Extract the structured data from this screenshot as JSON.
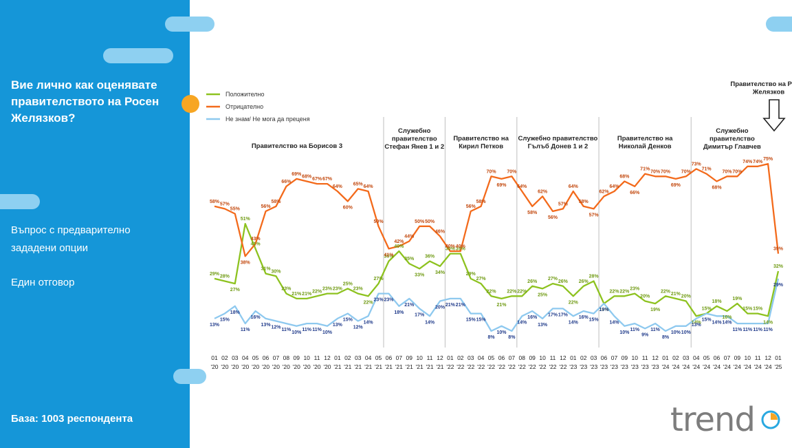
{
  "sidebar": {
    "title": "Вие лично как оценявате правителството на Росен Желязков?",
    "question_note": "Въпрос с предварително зададени опции",
    "answer_note": "Един отговор",
    "base": "База:  1003 респондента"
  },
  "logo": {
    "text": "trend"
  },
  "colors": {
    "positive": "#8dc21f",
    "negative": "#f36a1b",
    "dontknow": "#8ec9ef",
    "sidebar": "#1596d8",
    "accent_dot": "#f7a623"
  },
  "chart_data": {
    "type": "line",
    "ylim": [
      0,
      80
    ],
    "categories": [
      [
        "01",
        "'20"
      ],
      [
        "02",
        "'20"
      ],
      [
        "03",
        "'20"
      ],
      [
        "04",
        "'20"
      ],
      [
        "05",
        "'20"
      ],
      [
        "06",
        "'20"
      ],
      [
        "07",
        "'20"
      ],
      [
        "08",
        "'20"
      ],
      [
        "09",
        "'20"
      ],
      [
        "10",
        "'20"
      ],
      [
        "11",
        "'20"
      ],
      [
        "12",
        "'20"
      ],
      [
        "01",
        "'21"
      ],
      [
        "02",
        "'21"
      ],
      [
        "03",
        "'21"
      ],
      [
        "04",
        "'21"
      ],
      [
        "05",
        "'21"
      ],
      [
        "06",
        "'21"
      ],
      [
        "07",
        "'21"
      ],
      [
        "09",
        "'21"
      ],
      [
        "10",
        "'21"
      ],
      [
        "11",
        "'21"
      ],
      [
        "12",
        "'21"
      ],
      [
        "01",
        "'22"
      ],
      [
        "02",
        "'22"
      ],
      [
        "03",
        "'22"
      ],
      [
        "04",
        "'22"
      ],
      [
        "05",
        "'22"
      ],
      [
        "06",
        "'22"
      ],
      [
        "07",
        "'22"
      ],
      [
        "08",
        "'22"
      ],
      [
        "09",
        "'22"
      ],
      [
        "10",
        "'22"
      ],
      [
        "11",
        "'22"
      ],
      [
        "12",
        "'22"
      ],
      [
        "01",
        "'23"
      ],
      [
        "02",
        "'23"
      ],
      [
        "03",
        "'23"
      ],
      [
        "06",
        "'23"
      ],
      [
        "07",
        "'23"
      ],
      [
        "09",
        "'23"
      ],
      [
        "10",
        "'23"
      ],
      [
        "11",
        "'23"
      ],
      [
        "12",
        "'23"
      ],
      [
        "01",
        "'24"
      ],
      [
        "02",
        "'24"
      ],
      [
        "03",
        "'24"
      ],
      [
        "04",
        "'24"
      ],
      [
        "05",
        "'24"
      ],
      [
        "06",
        "'24"
      ],
      [
        "07",
        "'24"
      ],
      [
        "09",
        "'24"
      ],
      [
        "10",
        "'24"
      ],
      [
        "11",
        "'24"
      ],
      [
        "12",
        "'24"
      ],
      [
        "01",
        "'25"
      ]
    ],
    "series": [
      {
        "name": "Положително",
        "key": "positive",
        "values": [
          29,
          28,
          27,
          51,
          41,
          31,
          30,
          23,
          21,
          21,
          22,
          23,
          23,
          25,
          23,
          22,
          27,
          36,
          40,
          35,
          33,
          36,
          34,
          39,
          39,
          29,
          27,
          22,
          21,
          22,
          22,
          26,
          25,
          27,
          26,
          22,
          26,
          28,
          19,
          22,
          22,
          23,
          20,
          19,
          22,
          21,
          20,
          14,
          15,
          18,
          16,
          19,
          15,
          15,
          14,
          32
        ]
      },
      {
        "name": "Отрицателно",
        "key": "negative",
        "values": [
          58,
          57,
          55,
          38,
          43,
          56,
          58,
          66,
          69,
          68,
          67,
          67,
          64,
          60,
          65,
          64,
          50,
          41,
          42,
          44,
          50,
          50,
          46,
          40,
          40,
          56,
          58,
          70,
          69,
          70,
          64,
          58,
          62,
          56,
          57,
          64,
          58,
          57,
          62,
          64,
          68,
          66,
          71,
          70,
          70,
          69,
          70,
          73,
          71,
          68,
          70,
          70,
          74,
          74,
          75,
          39
        ]
      },
      {
        "name": "Не знам/ Не мога да преценя",
        "key": "dontknow",
        "values": [
          13,
          15,
          18,
          11,
          16,
          13,
          12,
          11,
          10,
          11,
          11,
          10,
          13,
          15,
          12,
          14,
          23,
          23,
          18,
          21,
          17,
          14,
          20,
          21,
          21,
          15,
          15,
          8,
          10,
          8,
          14,
          16,
          13,
          17,
          17,
          14,
          16,
          15,
          19,
          14,
          10,
          11,
          9,
          11,
          8,
          10,
          10,
          13,
          15,
          14,
          14,
          11,
          11,
          11,
          11,
          29
        ]
      }
    ],
    "value_labels": {
      "positive": [
        "29%",
        "28%",
        "27%",
        "51%",
        "41%",
        "31%",
        "30%",
        "23%",
        "21%",
        "21%",
        "22%",
        "23%",
        "23%",
        "25%",
        "23%",
        "22%",
        "27%",
        "36%",
        "40%",
        "35%",
        "33%",
        "36%",
        "34%",
        "39%",
        "39%",
        "29%",
        "27%",
        "22%",
        "21%",
        "22%",
        "22%",
        "26%",
        "25%",
        "27%",
        "26%",
        "22%",
        "26%",
        "28%",
        "19%",
        "22%",
        "22%",
        "23%",
        "20%",
        "19%",
        "22%",
        "21%",
        "20%",
        "14%",
        "15%",
        "18%",
        "16%",
        "19%",
        "15%",
        "15%",
        "14%",
        "32%"
      ],
      "negative": [
        "58%",
        "57%",
        "55%",
        "38%",
        "43%",
        "56%",
        "58%",
        "66%",
        "69%",
        "68%",
        "67%",
        "67%",
        "64%",
        "60%",
        "65%",
        "64%",
        "50%",
        "41%",
        "42%",
        "44%",
        "50%",
        "50%",
        "46%",
        "40%",
        "40%",
        "56%",
        "58%",
        "70%",
        "69%",
        "70%",
        "64%",
        "58%",
        "62%",
        "56%",
        "57%",
        "64%",
        "58%",
        "57%",
        "62%",
        "64%",
        "68%",
        "66%",
        "71%",
        "70%",
        "70%",
        "69%",
        "70%",
        "73%",
        "71%",
        "68%",
        "70%",
        "70%",
        "74%",
        "74%",
        "75%",
        "39%"
      ],
      "dontknow": [
        "13%",
        "15%",
        "18%",
        "11%",
        "16%",
        "13%",
        "12%",
        "11%",
        "10%",
        "11%",
        "11%",
        "10%",
        "13%",
        "15%",
        "12%",
        "14%",
        "23%",
        "23%",
        "18%",
        "21%",
        "17%",
        "14%",
        "20%",
        "21%",
        "21%",
        "15%",
        "15%",
        "8%",
        "10%",
        "8%",
        "14%",
        "16%",
        "13%",
        "17%",
        "17%",
        "14%",
        "16%",
        "15%",
        "19%",
        "14%",
        "10%",
        "11%",
        "9%",
        "11%",
        "8%",
        "10%",
        "10%",
        "13%",
        "15%",
        "14%",
        "14%",
        "11%",
        "11%",
        "11%",
        "11%",
        "29%"
      ]
    },
    "governments": [
      {
        "lines": [
          "Правителство на Борисов 3"
        ],
        "start": 0
      },
      {
        "lines": [
          "Служебно",
          "правителство",
          "Стефан Янев 1 и 2"
        ],
        "start": 17
      },
      {
        "lines": [
          "Правителство на",
          "Кирил Петков"
        ],
        "start": 23
      },
      {
        "lines": [
          "Служебно правителство",
          "Гълъб Донев 1 и 2"
        ],
        "start": 30
      },
      {
        "lines": [
          "Правителство на",
          "Николай Денков"
        ],
        "start": 38
      },
      {
        "lines": [
          "Служебно",
          "правителство",
          "Димитър Главчев"
        ],
        "start": 47
      },
      {
        "lines": [
          "Правителство на Росен",
          "Желязков"
        ],
        "start": 55
      }
    ]
  }
}
